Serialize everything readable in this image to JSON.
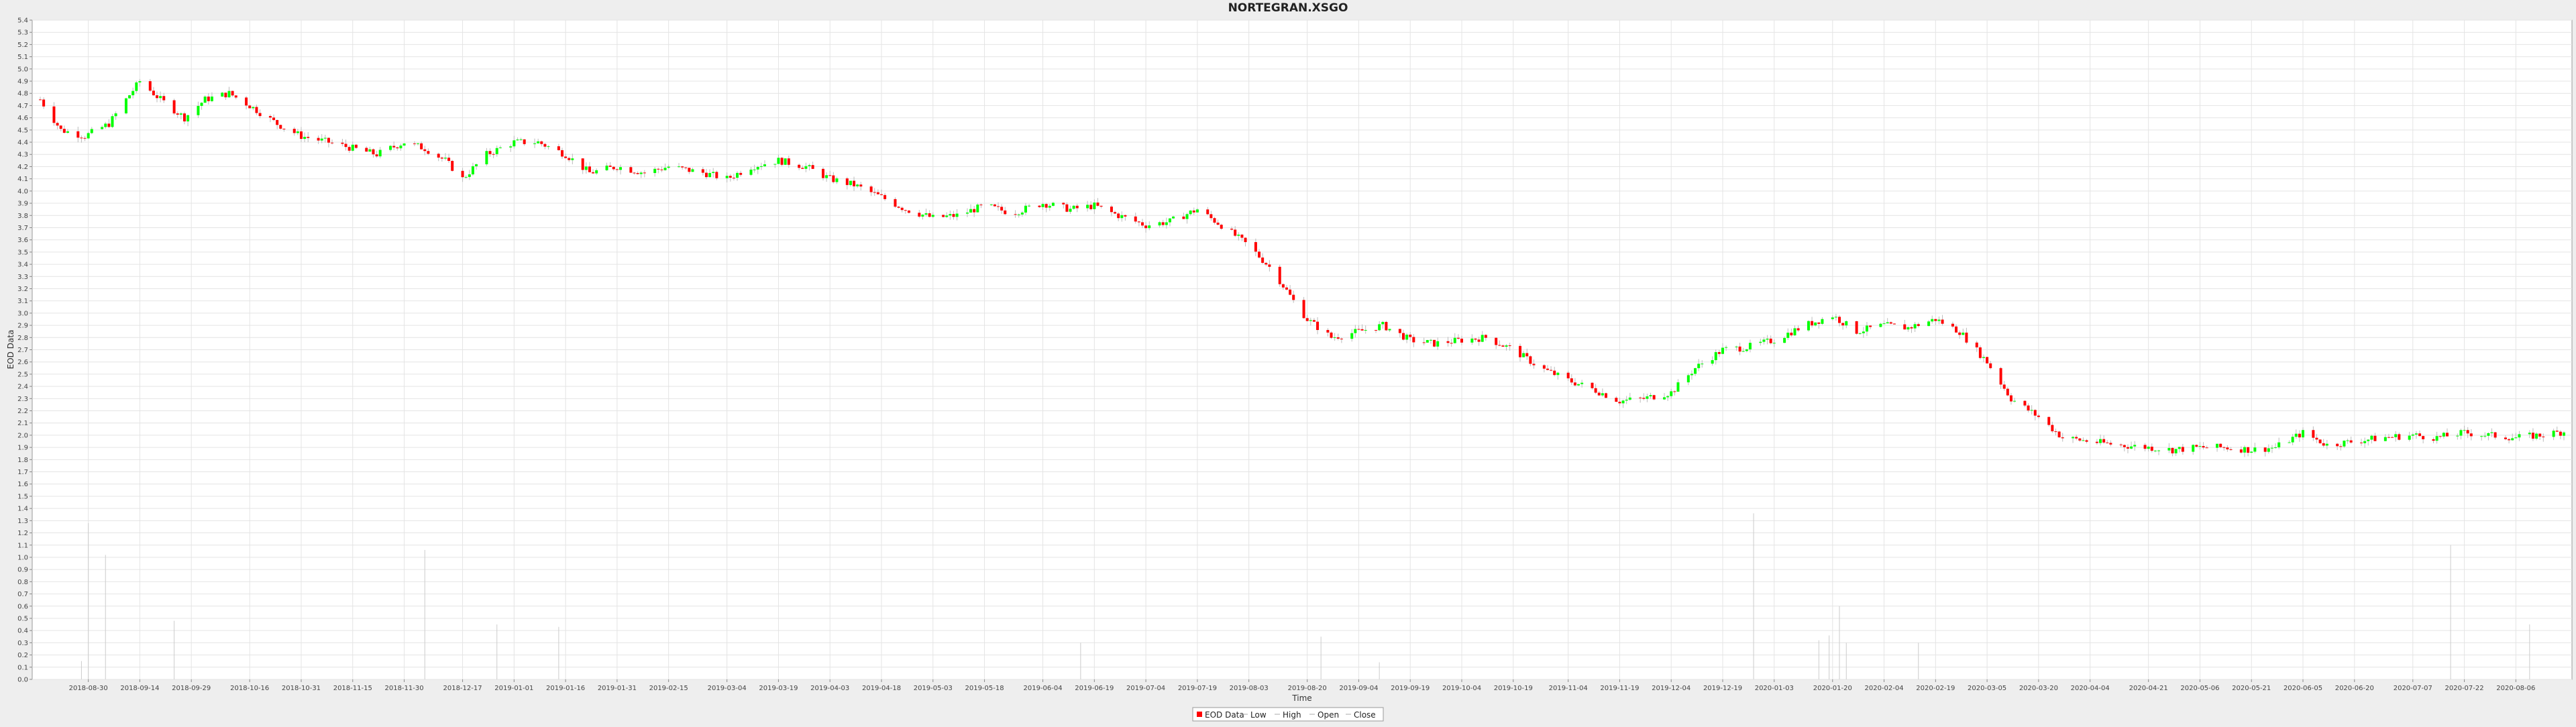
{
  "chart_data": {
    "type": "candlestick",
    "title": "NORTEGRAN.XSGO",
    "xlabel": "Time",
    "ylabel": "EOD Data",
    "ylim": [
      0.0,
      5.4
    ],
    "y_ticks": [
      "0.0",
      "0.1",
      "0.2",
      "0.3",
      "0.4",
      "0.5",
      "0.6",
      "0.7",
      "0.8",
      "0.9",
      "1.0",
      "1.1",
      "1.2",
      "1.3",
      "1.4",
      "1.5",
      "1.6",
      "1.7",
      "1.8",
      "1.9",
      "2.0",
      "2.1",
      "2.2",
      "2.3",
      "2.4",
      "2.5",
      "2.6",
      "2.7",
      "2.8",
      "2.9",
      "3.0",
      "3.1",
      "3.2",
      "3.3",
      "3.4",
      "3.5",
      "3.6",
      "3.7",
      "3.8",
      "3.9",
      "4.0",
      "4.1",
      "4.2",
      "4.3",
      "4.4",
      "4.5",
      "4.6",
      "4.7",
      "4.8",
      "4.9",
      "5.0",
      "5.1",
      "5.2",
      "5.3",
      "5.4"
    ],
    "x_range": [
      "2018-08-16",
      "2020-08-20"
    ],
    "x_ticks": [
      "2018-08-30",
      "2018-09-14",
      "2018-09-29",
      "2018-10-16",
      "2018-10-31",
      "2018-11-15",
      "2018-11-30",
      "2018-12-17",
      "2019-01-01",
      "2019-01-16",
      "2019-01-31",
      "2019-02-15",
      "2019-03-04",
      "2019-03-19",
      "2019-04-03",
      "2019-04-18",
      "2019-05-03",
      "2019-05-18",
      "2019-06-04",
      "2019-06-19",
      "2019-07-04",
      "2019-07-19",
      "2019-08-03",
      "2019-08-20",
      "2019-09-04",
      "2019-09-19",
      "2019-10-04",
      "2019-10-19",
      "2019-11-04",
      "2019-11-19",
      "2019-12-04",
      "2019-12-19",
      "2020-01-03",
      "2020-01-20",
      "2020-02-04",
      "2020-02-19",
      "2020-03-05",
      "2020-03-20",
      "2020-04-04",
      "2020-04-21",
      "2020-05-06",
      "2020-05-21",
      "2020-06-05",
      "2020-06-20",
      "2020-07-07",
      "2020-07-22",
      "2020-08-06"
    ],
    "grid": true,
    "legend_position": "bottom-center",
    "legend": [
      "EOD Data",
      "Low",
      "High",
      "Open",
      "Close"
    ],
    "colors": {
      "up": "#00ff00",
      "down": "#ff0000",
      "volume": "#cccccc",
      "grid": "#e4e4e4",
      "plot_bg": "#ffffff"
    },
    "anchors": [
      [
        "2018-08-16",
        4.75
      ],
      [
        "2018-08-22",
        4.5
      ],
      [
        "2018-08-29",
        4.45
      ],
      [
        "2018-09-05",
        4.55
      ],
      [
        "2018-09-10",
        4.75
      ],
      [
        "2018-09-14",
        4.9
      ],
      [
        "2018-09-20",
        4.75
      ],
      [
        "2018-09-27",
        4.6
      ],
      [
        "2018-10-03",
        4.75
      ],
      [
        "2018-10-10",
        4.8
      ],
      [
        "2018-10-16",
        4.7
      ],
      [
        "2018-10-24",
        4.55
      ],
      [
        "2018-10-31",
        4.45
      ],
      [
        "2018-11-08",
        4.4
      ],
      [
        "2018-11-15",
        4.35
      ],
      [
        "2018-11-22",
        4.3
      ],
      [
        "2018-11-30",
        4.4
      ],
      [
        "2018-12-06",
        4.35
      ],
      [
        "2018-12-12",
        4.25
      ],
      [
        "2018-12-17",
        4.1
      ],
      [
        "2018-12-24",
        4.3
      ],
      [
        "2019-01-01",
        4.4
      ],
      [
        "2019-01-08",
        4.4
      ],
      [
        "2019-01-16",
        4.3
      ],
      [
        "2019-01-23",
        4.15
      ],
      [
        "2019-01-31",
        4.2
      ],
      [
        "2019-02-08",
        4.15
      ],
      [
        "2019-02-15",
        4.2
      ],
      [
        "2019-02-25",
        4.15
      ],
      [
        "2019-03-04",
        4.1
      ],
      [
        "2019-03-11",
        4.2
      ],
      [
        "2019-03-19",
        4.25
      ],
      [
        "2019-03-27",
        4.2
      ],
      [
        "2019-04-03",
        4.1
      ],
      [
        "2019-04-10",
        4.05
      ],
      [
        "2019-04-18",
        3.95
      ],
      [
        "2019-04-25",
        3.85
      ],
      [
        "2019-05-03",
        3.78
      ],
      [
        "2019-05-10",
        3.8
      ],
      [
        "2019-05-18",
        3.88
      ],
      [
        "2019-05-26",
        3.82
      ],
      [
        "2019-06-04",
        3.9
      ],
      [
        "2019-06-12",
        3.85
      ],
      [
        "2019-06-19",
        3.88
      ],
      [
        "2019-06-26",
        3.8
      ],
      [
        "2019-07-04",
        3.72
      ],
      [
        "2019-07-11",
        3.75
      ],
      [
        "2019-07-19",
        3.85
      ],
      [
        "2019-07-26",
        3.72
      ],
      [
        "2019-08-03",
        3.55
      ],
      [
        "2019-08-10",
        3.35
      ],
      [
        "2019-08-16",
        3.1
      ],
      [
        "2019-08-20",
        2.95
      ],
      [
        "2019-08-27",
        2.8
      ],
      [
        "2019-09-04",
        2.85
      ],
      [
        "2019-09-11",
        2.9
      ],
      [
        "2019-09-19",
        2.78
      ],
      [
        "2019-09-26",
        2.75
      ],
      [
        "2019-10-04",
        2.78
      ],
      [
        "2019-10-11",
        2.8
      ],
      [
        "2019-10-19",
        2.7
      ],
      [
        "2019-10-27",
        2.55
      ],
      [
        "2019-11-04",
        2.45
      ],
      [
        "2019-11-11",
        2.38
      ],
      [
        "2019-11-19",
        2.28
      ],
      [
        "2019-11-26",
        2.3
      ],
      [
        "2019-12-04",
        2.35
      ],
      [
        "2019-12-11",
        2.55
      ],
      [
        "2019-12-19",
        2.7
      ],
      [
        "2019-12-26",
        2.72
      ],
      [
        "2020-01-03",
        2.78
      ],
      [
        "2020-01-12",
        2.9
      ],
      [
        "2020-01-20",
        2.98
      ],
      [
        "2020-01-27",
        2.85
      ],
      [
        "2020-02-04",
        2.9
      ],
      [
        "2020-02-11",
        2.88
      ],
      [
        "2020-02-19",
        2.95
      ],
      [
        "2020-02-26",
        2.85
      ],
      [
        "2020-03-05",
        2.6
      ],
      [
        "2020-03-12",
        2.3
      ],
      [
        "2020-03-20",
        2.15
      ],
      [
        "2020-03-27",
        1.98
      ],
      [
        "2020-04-04",
        1.95
      ],
      [
        "2020-04-12",
        1.92
      ],
      [
        "2020-04-21",
        1.9
      ],
      [
        "2020-04-28",
        1.88
      ],
      [
        "2020-05-06",
        1.9
      ],
      [
        "2020-05-13",
        1.9
      ],
      [
        "2020-05-21",
        1.88
      ],
      [
        "2020-05-28",
        1.9
      ],
      [
        "2020-06-05",
        2.02
      ],
      [
        "2020-06-12",
        1.92
      ],
      [
        "2020-06-20",
        1.95
      ],
      [
        "2020-06-28",
        1.98
      ],
      [
        "2020-07-07",
        2.0
      ],
      [
        "2020-07-14",
        1.98
      ],
      [
        "2020-07-22",
        2.02
      ],
      [
        "2020-07-29",
        2.0
      ],
      [
        "2020-08-06",
        1.98
      ],
      [
        "2020-08-13",
        2.0
      ],
      [
        "2020-08-20",
        2.03
      ]
    ],
    "volume_spikes": [
      [
        "2018-08-28",
        0.15
      ],
      [
        "2018-08-30",
        1.28
      ],
      [
        "2018-09-04",
        1.02
      ],
      [
        "2018-09-24",
        0.48
      ],
      [
        "2018-12-06",
        1.06
      ],
      [
        "2018-12-27",
        0.45
      ],
      [
        "2019-01-14",
        0.43
      ],
      [
        "2019-06-15",
        0.3
      ],
      [
        "2019-08-24",
        0.35
      ],
      [
        "2019-09-10",
        0.14
      ],
      [
        "2019-12-28",
        1.36
      ],
      [
        "2020-01-16",
        0.32
      ],
      [
        "2020-01-19",
        0.36
      ],
      [
        "2020-01-22",
        0.6
      ],
      [
        "2020-01-24",
        0.3
      ],
      [
        "2020-02-14",
        0.3
      ],
      [
        "2020-07-18",
        1.1
      ],
      [
        "2020-08-10",
        0.45
      ]
    ]
  }
}
